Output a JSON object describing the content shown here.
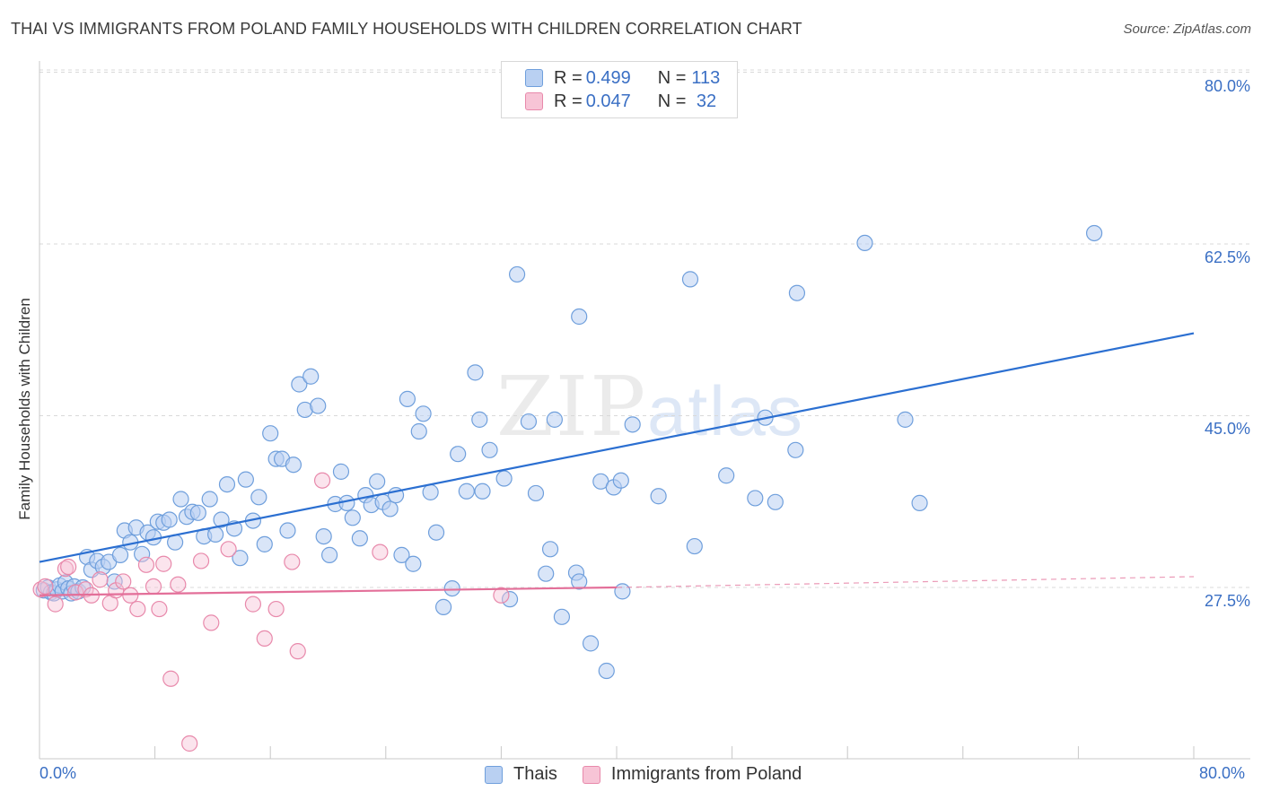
{
  "title": "THAI VS IMMIGRANTS FROM POLAND FAMILY HOUSEHOLDS WITH CHILDREN CORRELATION CHART",
  "source": "Source: ZipAtlas.com",
  "watermark": {
    "a": "ZIP",
    "b": "atlas"
  },
  "colors": {
    "blue": "#6f9fdc",
    "blue_fill": "#b9d0f2",
    "blue_line": "#2b6fd1",
    "pink": "#e889ab",
    "pink_fill": "#f7c4d6",
    "pink_line": "#e36f99",
    "grid": "#d9d9d9",
    "axis_text": "#3a6fc4"
  },
  "legend": {
    "rows": [
      {
        "r_label": "R = ",
        "r_value": "0.499",
        "n_label": "N = ",
        "n_value": "113"
      },
      {
        "r_label": "R = ",
        "r_value": "0.047",
        "n_label": "N = ",
        "n_value": " 32"
      }
    ]
  },
  "bottom_legend": {
    "series1": "Thais",
    "series2": "Immigrants from Poland"
  },
  "chart_data": {
    "type": "scatter",
    "title": "THAI VS IMMIGRANTS FROM POLAND FAMILY HOUSEHOLDS WITH CHILDREN CORRELATION CHART",
    "xlabel": "",
    "ylabel": "Family Households with Children",
    "xlim": [
      0,
      80
    ],
    "ylim": [
      10,
      82
    ],
    "x_tick_labels": [
      "0.0%",
      "80.0%"
    ],
    "y_ticks": [
      27.5,
      45.0,
      62.5,
      80.0
    ],
    "y_tick_labels": [
      "27.5%",
      "45.0%",
      "62.5%",
      "80.0%"
    ],
    "series": [
      {
        "name": "Thais",
        "R": 0.499,
        "N": 113,
        "trend": {
          "x": [
            0,
            80
          ],
          "y": [
            30.1,
            53.4
          ]
        },
        "points": [
          [
            0.3,
            27.2
          ],
          [
            0.6,
            27.5
          ],
          [
            0.8,
            27.0
          ],
          [
            1.0,
            26.9
          ],
          [
            1.2,
            27.3
          ],
          [
            1.4,
            27.7
          ],
          [
            1.6,
            27.1
          ],
          [
            1.8,
            28.0
          ],
          [
            2.0,
            27.4
          ],
          [
            2.2,
            26.9
          ],
          [
            2.4,
            27.6
          ],
          [
            2.7,
            27.1
          ],
          [
            3.0,
            27.5
          ],
          [
            3.3,
            30.6
          ],
          [
            3.6,
            29.3
          ],
          [
            4.0,
            30.2
          ],
          [
            4.4,
            29.6
          ],
          [
            4.8,
            30.1
          ],
          [
            5.2,
            28.1
          ],
          [
            5.6,
            30.8
          ],
          [
            5.9,
            33.3
          ],
          [
            6.3,
            32.1
          ],
          [
            6.7,
            33.6
          ],
          [
            7.1,
            30.9
          ],
          [
            7.5,
            33.1
          ],
          [
            7.9,
            32.6
          ],
          [
            8.2,
            34.2
          ],
          [
            8.6,
            34.1
          ],
          [
            9.0,
            34.4
          ],
          [
            9.4,
            32.1
          ],
          [
            9.8,
            36.5
          ],
          [
            10.2,
            34.7
          ],
          [
            10.6,
            35.2
          ],
          [
            11.0,
            35.1
          ],
          [
            11.4,
            32.7
          ],
          [
            11.8,
            36.5
          ],
          [
            12.2,
            32.9
          ],
          [
            12.6,
            34.4
          ],
          [
            13.0,
            38.0
          ],
          [
            13.5,
            33.5
          ],
          [
            13.9,
            30.5
          ],
          [
            14.3,
            38.5
          ],
          [
            14.8,
            34.3
          ],
          [
            15.2,
            36.7
          ],
          [
            15.6,
            31.9
          ],
          [
            16.0,
            43.2
          ],
          [
            16.4,
            40.6
          ],
          [
            16.8,
            40.6
          ],
          [
            17.2,
            33.3
          ],
          [
            17.6,
            40.0
          ],
          [
            18.0,
            48.2
          ],
          [
            18.4,
            45.6
          ],
          [
            18.8,
            49.0
          ],
          [
            19.3,
            46.0
          ],
          [
            19.7,
            32.7
          ],
          [
            20.1,
            30.8
          ],
          [
            20.5,
            36.0
          ],
          [
            20.9,
            39.3
          ],
          [
            21.3,
            36.1
          ],
          [
            21.7,
            34.6
          ],
          [
            22.2,
            32.5
          ],
          [
            22.6,
            36.9
          ],
          [
            23.0,
            35.9
          ],
          [
            23.4,
            38.3
          ],
          [
            23.8,
            36.2
          ],
          [
            24.3,
            35.5
          ],
          [
            24.7,
            36.9
          ],
          [
            25.1,
            30.8
          ],
          [
            25.5,
            46.7
          ],
          [
            25.9,
            29.9
          ],
          [
            26.3,
            43.4
          ],
          [
            26.6,
            45.2
          ],
          [
            27.1,
            37.2
          ],
          [
            27.5,
            33.1
          ],
          [
            28.0,
            25.5
          ],
          [
            28.6,
            27.4
          ],
          [
            29.0,
            41.1
          ],
          [
            29.6,
            37.3
          ],
          [
            30.2,
            49.4
          ],
          [
            30.5,
            44.6
          ],
          [
            30.7,
            37.3
          ],
          [
            31.2,
            41.5
          ],
          [
            32.2,
            38.6
          ],
          [
            32.6,
            26.3
          ],
          [
            33.1,
            59.4
          ],
          [
            33.9,
            44.4
          ],
          [
            34.4,
            37.1
          ],
          [
            35.1,
            28.9
          ],
          [
            35.4,
            31.4
          ],
          [
            35.7,
            44.6
          ],
          [
            36.2,
            24.5
          ],
          [
            37.2,
            29.0
          ],
          [
            37.4,
            28.1
          ],
          [
            37.4,
            55.1
          ],
          [
            38.2,
            21.8
          ],
          [
            38.9,
            38.3
          ],
          [
            39.3,
            19.0
          ],
          [
            39.8,
            37.7
          ],
          [
            40.3,
            38.4
          ],
          [
            40.4,
            27.1
          ],
          [
            41.1,
            44.1
          ],
          [
            42.9,
            36.8
          ],
          [
            45.1,
            58.9
          ],
          [
            45.4,
            31.7
          ],
          [
            47.6,
            38.9
          ],
          [
            49.6,
            36.6
          ],
          [
            50.3,
            44.8
          ],
          [
            51.0,
            36.2
          ],
          [
            52.4,
            41.5
          ],
          [
            52.5,
            57.5
          ],
          [
            57.2,
            62.6
          ],
          [
            60.0,
            44.6
          ],
          [
            61.0,
            36.1
          ],
          [
            73.1,
            63.6
          ]
        ]
      },
      {
        "name": "Immigrants from Poland",
        "R": 0.047,
        "N": 32,
        "trend": {
          "x": [
            0,
            40
          ],
          "y": [
            26.7,
            27.5
          ]
        },
        "trend_dashed_extension": {
          "x": [
            40,
            80
          ],
          "y": [
            27.5,
            28.6
          ]
        },
        "points": [
          [
            0.1,
            27.3
          ],
          [
            0.4,
            27.6
          ],
          [
            1.1,
            25.8
          ],
          [
            1.8,
            29.4
          ],
          [
            2.0,
            29.6
          ],
          [
            2.5,
            27.0
          ],
          [
            3.2,
            27.3
          ],
          [
            3.6,
            26.7
          ],
          [
            4.2,
            28.3
          ],
          [
            4.9,
            25.9
          ],
          [
            5.3,
            27.2
          ],
          [
            5.8,
            28.1
          ],
          [
            6.3,
            26.7
          ],
          [
            6.8,
            25.3
          ],
          [
            7.4,
            29.8
          ],
          [
            7.9,
            27.6
          ],
          [
            8.3,
            25.3
          ],
          [
            8.6,
            29.9
          ],
          [
            9.1,
            18.2
          ],
          [
            9.6,
            27.8
          ],
          [
            10.4,
            11.6
          ],
          [
            11.2,
            30.2
          ],
          [
            11.9,
            23.9
          ],
          [
            13.1,
            31.4
          ],
          [
            14.8,
            25.8
          ],
          [
            15.6,
            22.3
          ],
          [
            16.4,
            25.3
          ],
          [
            17.5,
            30.1
          ],
          [
            17.9,
            21.0
          ],
          [
            19.6,
            38.4
          ],
          [
            23.6,
            31.1
          ],
          [
            32.0,
            26.7
          ]
        ]
      }
    ]
  }
}
